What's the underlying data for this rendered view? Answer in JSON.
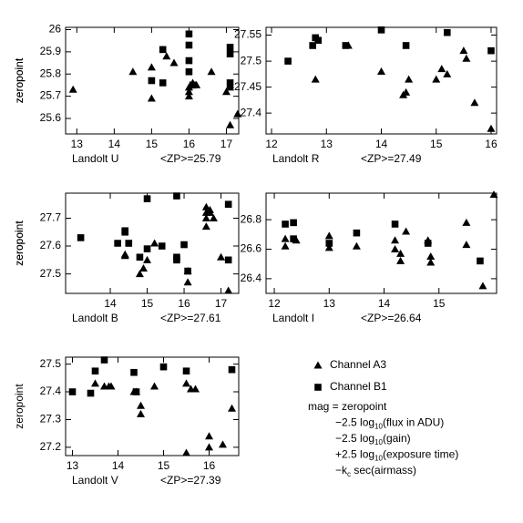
{
  "chart_data": [
    {
      "type": "scatter",
      "ylabel": "zeropoint",
      "xlabel": "Landolt U",
      "mean_label": "<ZP>=25.79",
      "xlim": [
        12.7,
        17.33
      ],
      "ylim": [
        25.53,
        26.01
      ],
      "xticks": [
        13,
        14,
        15,
        16,
        17
      ],
      "yticks": [
        25.6,
        25.7,
        25.8,
        25.9,
        26
      ],
      "series": [
        {
          "marker": "triangle",
          "x": [
            12.9,
            14.5,
            15.0,
            15.0,
            15.4,
            15.6,
            16.0,
            16.0,
            16.1,
            16.2,
            16.6,
            17.0,
            17.1,
            17.1,
            17.1,
            17.3,
            16.0
          ],
          "values": [
            25.73,
            25.81,
            25.83,
            25.69,
            25.88,
            25.85,
            25.74,
            25.72,
            25.76,
            25.75,
            25.81,
            25.72,
            25.57,
            25.75,
            25.74,
            25.62,
            25.7
          ]
        },
        {
          "marker": "square",
          "x": [
            15.0,
            15.3,
            15.3,
            16.0,
            16.0,
            16.0,
            16.0,
            16.1,
            17.1,
            17.1,
            17.1
          ],
          "values": [
            25.77,
            25.91,
            25.76,
            25.98,
            25.93,
            25.86,
            25.81,
            25.75,
            25.92,
            25.89,
            25.76
          ]
        }
      ]
    },
    {
      "type": "scatter",
      "ylabel": "zeropoint",
      "xlabel": "Landolt R",
      "mean_label": "<ZP>=27.49",
      "xlim": [
        11.9,
        16.1
      ],
      "ylim": [
        27.36,
        27.565
      ],
      "xticks": [
        12,
        13,
        14,
        15,
        16
      ],
      "yticks": [
        27.4,
        27.45,
        27.5,
        27.55
      ],
      "series": [
        {
          "marker": "triangle",
          "x": [
            12.8,
            13.4,
            14.0,
            14.4,
            14.45,
            14.5,
            15.0,
            15.1,
            15.2,
            15.5,
            15.55,
            15.7,
            16.0
          ],
          "values": [
            27.465,
            27.53,
            27.48,
            27.435,
            27.44,
            27.465,
            27.465,
            27.485,
            27.475,
            27.52,
            27.505,
            27.42,
            27.37
          ]
        },
        {
          "marker": "square",
          "x": [
            12.3,
            12.75,
            12.8,
            12.85,
            13.35,
            14.0,
            14.45,
            15.2,
            16.0
          ],
          "values": [
            27.5,
            27.53,
            27.545,
            27.54,
            27.53,
            27.56,
            27.53,
            27.555,
            27.52
          ]
        }
      ]
    },
    {
      "type": "scatter",
      "ylabel": "zeropoint",
      "xlabel": "Landolt B",
      "mean_label": "<ZP>=27.61",
      "xlim": [
        12.79,
        17.48
      ],
      "ylim": [
        27.43,
        27.79
      ],
      "xticks": [
        14,
        15,
        16,
        17
      ],
      "yticks": [
        27.5,
        27.6,
        27.7
      ],
      "series": [
        {
          "marker": "triangle",
          "x": [
            14.4,
            14.4,
            14.8,
            14.9,
            15.0,
            15.2,
            16.1,
            16.1,
            16.6,
            16.6,
            16.6,
            16.6,
            16.7,
            16.7,
            16.8,
            17.0,
            17.2
          ],
          "values": [
            27.57,
            27.565,
            27.5,
            27.52,
            27.55,
            27.61,
            27.47,
            27.51,
            27.72,
            27.7,
            27.74,
            27.67,
            27.72,
            27.73,
            27.7,
            27.56,
            27.44
          ]
        },
        {
          "marker": "square",
          "x": [
            13.2,
            14.2,
            14.4,
            14.4,
            14.5,
            14.8,
            15.0,
            15.0,
            15.4,
            15.8,
            15.8,
            15.8,
            16.0,
            16.1,
            17.2,
            17.2
          ],
          "values": [
            27.63,
            27.61,
            27.655,
            27.65,
            27.61,
            27.56,
            27.59,
            27.77,
            27.6,
            27.78,
            27.56,
            27.55,
            27.605,
            27.51,
            27.75,
            27.55
          ]
        }
      ]
    },
    {
      "type": "scatter",
      "ylabel": "zeropoint",
      "xlabel": "Landolt I",
      "mean_label": "<ZP>=26.64",
      "xlim": [
        11.85,
        16.05
      ],
      "ylim": [
        26.3,
        26.98
      ],
      "xticks": [
        12,
        13,
        14,
        15
      ],
      "yticks": [
        26.4,
        26.6,
        26.8
      ],
      "series": [
        {
          "marker": "triangle",
          "x": [
            12.2,
            12.2,
            12.4,
            13.0,
            13.0,
            13.5,
            14.2,
            14.2,
            14.3,
            14.3,
            14.4,
            14.8,
            14.85,
            14.85,
            15.5,
            15.5,
            15.8,
            16.0
          ],
          "values": [
            26.62,
            26.67,
            26.66,
            26.69,
            26.61,
            26.62,
            26.66,
            26.6,
            26.57,
            26.52,
            26.72,
            26.66,
            26.55,
            26.51,
            26.78,
            26.63,
            26.35,
            26.97
          ]
        },
        {
          "marker": "square",
          "x": [
            12.2,
            12.35,
            12.35,
            13.0,
            13.5,
            14.2,
            14.8,
            15.75
          ],
          "values": [
            26.77,
            26.78,
            26.67,
            26.64,
            26.71,
            26.77,
            26.64,
            26.52
          ]
        }
      ]
    },
    {
      "type": "scatter",
      "ylabel": "zeropoint",
      "xlabel": "Landolt V",
      "mean_label": "<ZP>=27.39",
      "xlim": [
        12.85,
        16.65
      ],
      "ylim": [
        27.17,
        27.525
      ],
      "xticks": [
        13,
        14,
        15,
        16
      ],
      "yticks": [
        27.2,
        27.3,
        27.4,
        27.5
      ],
      "series": [
        {
          "marker": "triangle",
          "x": [
            13.5,
            13.7,
            13.8,
            13.85,
            14.35,
            14.4,
            14.5,
            14.5,
            14.8,
            15.5,
            15.5,
            15.6,
            15.7,
            16.0,
            16.0,
            16.3,
            16.5
          ],
          "values": [
            27.43,
            27.42,
            27.42,
            27.42,
            27.4,
            27.4,
            27.35,
            27.32,
            27.42,
            27.43,
            27.18,
            27.41,
            27.41,
            27.24,
            27.2,
            27.21,
            27.34
          ]
        },
        {
          "marker": "square",
          "x": [
            13.0,
            13.4,
            13.5,
            13.7,
            14.35,
            14.4,
            15.0,
            15.5,
            16.5
          ],
          "values": [
            27.4,
            27.395,
            27.475,
            27.515,
            27.47,
            27.4,
            27.49,
            27.475,
            27.48
          ]
        }
      ]
    }
  ],
  "legend": {
    "items": [
      {
        "marker": "triangle",
        "label": "Channel A3"
      },
      {
        "marker": "square",
        "label": "Channel B1"
      }
    ]
  },
  "equation": [
    [
      {
        "t": "mag = zeropoint"
      }
    ],
    [
      {
        "t": "−2.5 log"
      },
      {
        "t": "10",
        "sub": true
      },
      {
        "t": "(flux in ADU)"
      }
    ],
    [
      {
        "t": "−2.5 log"
      },
      {
        "t": "10",
        "sub": true
      },
      {
        "t": "(gain)"
      }
    ],
    [
      {
        "t": "+2.5 log"
      },
      {
        "t": "10",
        "sub": true
      },
      {
        "t": "(exposure time)"
      }
    ],
    [
      {
        "t": "−k"
      },
      {
        "t": "c",
        "sub": true
      },
      {
        "t": " sec(airmass)"
      }
    ]
  ]
}
